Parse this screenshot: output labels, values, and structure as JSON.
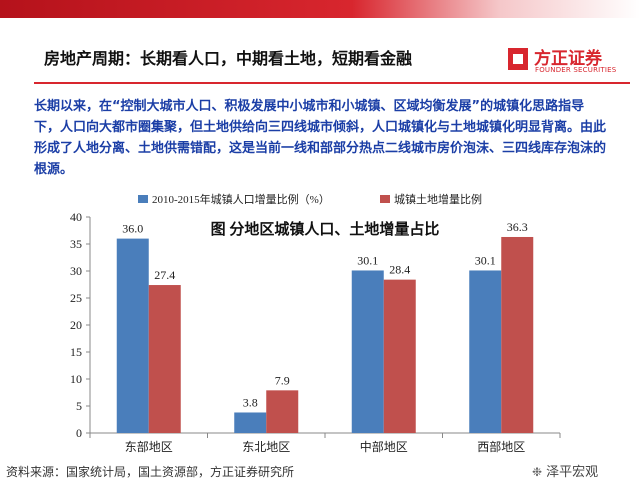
{
  "slide": {
    "title": "房地产周期：长期看人口，中期看土地，短期看金融",
    "summary": "长期以来，在“控制大城市人口、积极发展中小城市和小城镇、区域均衡发展”的城镇化思路指导下，人口向大都市圈集聚，但土地供给向三四线城市倾斜，人口城镇化与土地城镇化明显背离。由此形成了人地分离、土地供需错配，这是当前一线和部部分热点二线城市房价泡沫、三四线库存泡沫的根源。",
    "source": "资料来源：国家统计局，国土资源部，方正证券研究所"
  },
  "logo": {
    "cn": "方正证券",
    "en": "FOUNDER SECURITIES"
  },
  "watermark": {
    "text": "泽平宏观",
    "icon": "wechat-icon"
  },
  "colors": {
    "blue": "#4a7ebb",
    "red": "#c0504d",
    "brand": "#d8262e"
  },
  "chart_data": {
    "type": "bar",
    "title": "图   分地区城镇人口、土地增量占比",
    "categories": [
      "东部地区",
      "东北地区",
      "中部地区",
      "西部地区"
    ],
    "series": [
      {
        "name": "2010-2015年城镇人口增量比例（%）",
        "color": "#4a7ebb",
        "values": [
          36.0,
          3.8,
          30.1,
          30.1
        ]
      },
      {
        "name": "城镇土地增量比例",
        "color": "#c0504d",
        "values": [
          27.4,
          7.9,
          28.4,
          36.3
        ]
      }
    ],
    "ylim": [
      0,
      40
    ],
    "yticks": [
      0,
      5,
      10,
      15,
      20,
      25,
      30,
      35,
      40
    ],
    "legend": "top",
    "grid": false
  }
}
